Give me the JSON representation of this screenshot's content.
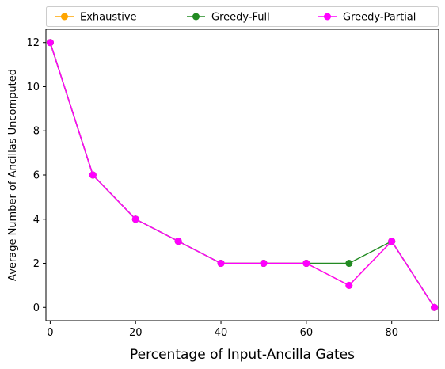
{
  "chart_data": {
    "type": "line",
    "title": "",
    "xlabel": "Percentage of Input-Ancilla Gates",
    "ylabel": "Average Number of Ancillas Uncomputed",
    "x": [
      0,
      10,
      20,
      30,
      40,
      50,
      60,
      70,
      80,
      90
    ],
    "xlim": [
      -1,
      91
    ],
    "ylim": [
      -0.6,
      12.6
    ],
    "xticks": [
      0,
      20,
      40,
      60,
      80
    ],
    "yticks": [
      0,
      2,
      4,
      6,
      8,
      10,
      12
    ],
    "xtick_labels": [
      "0",
      "20",
      "40",
      "60",
      "80"
    ],
    "ytick_labels": [
      "0",
      "2",
      "4",
      "6",
      "8",
      "10",
      "12"
    ],
    "grid": false,
    "legend": "top, outside, 3 columns",
    "series": [
      {
        "name": "Exhaustive",
        "color": "#ffa500",
        "marker": "circle",
        "values": [
          12,
          6,
          4,
          3,
          2,
          2,
          2,
          1,
          3,
          0
        ]
      },
      {
        "name": "Greedy-Full",
        "color": "#228b22",
        "marker": "circle",
        "values": [
          12,
          6,
          4,
          3,
          2,
          2,
          2,
          2,
          3,
          0
        ]
      },
      {
        "name": "Greedy-Partial",
        "color": "#ff00ff",
        "marker": "circle",
        "values": [
          12,
          6,
          4,
          3,
          2,
          2,
          2,
          1,
          3,
          0
        ]
      }
    ]
  }
}
